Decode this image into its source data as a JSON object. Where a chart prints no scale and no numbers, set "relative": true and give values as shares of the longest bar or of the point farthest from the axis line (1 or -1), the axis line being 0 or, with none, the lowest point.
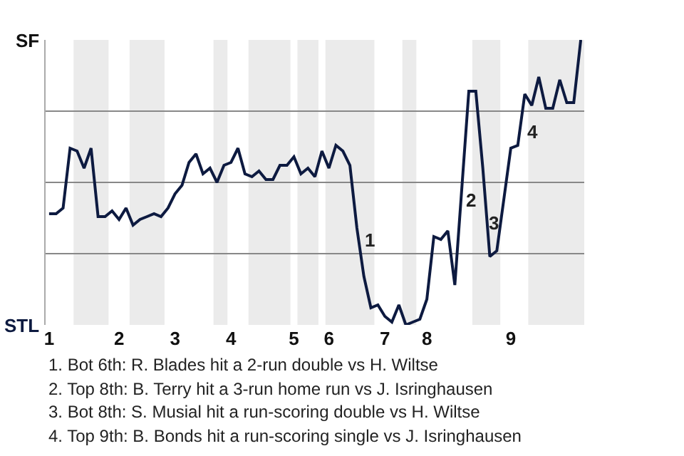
{
  "chart_data": {
    "type": "line",
    "relative": true,
    "categories": [
      "1",
      null,
      null,
      null,
      null,
      null,
      null,
      null,
      null,
      null,
      "2",
      null,
      null,
      null,
      null,
      null,
      null,
      null,
      "3",
      null,
      null,
      null,
      null,
      null,
      null,
      null,
      "4",
      null,
      null,
      null,
      null,
      null,
      null,
      null,
      null,
      "5",
      null,
      null,
      null,
      null,
      "6",
      null,
      null,
      null,
      null,
      null,
      null,
      null,
      "7",
      null,
      null,
      null,
      null,
      null,
      "8",
      null,
      null,
      null,
      null,
      null,
      null,
      null,
      null,
      null,
      null,
      null,
      "9",
      null,
      null,
      null,
      null,
      null,
      null,
      null,
      null,
      null,
      null
    ],
    "series": [
      {
        "color": "#0d1a40",
        "values": [
          0.39,
          0.39,
          0.41,
          0.62,
          0.61,
          0.55,
          0.62,
          0.38,
          0.38,
          0.4,
          0.37,
          0.41,
          0.35,
          0.37,
          0.38,
          0.39,
          0.38,
          0.41,
          0.46,
          0.49,
          0.57,
          0.6,
          0.53,
          0.55,
          0.5,
          0.56,
          0.57,
          0.62,
          0.53,
          0.52,
          0.54,
          0.51,
          0.51,
          0.56,
          0.56,
          0.59,
          0.53,
          0.55,
          0.52,
          0.61,
          0.55,
          0.63,
          0.61,
          0.56,
          0.34,
          0.17,
          0.06,
          0.07,
          0.03,
          0.01,
          0.07,
          0,
          0.01,
          0.02,
          0.09,
          0.31,
          0.3,
          0.33,
          0.14,
          0.48,
          0.82,
          0.82,
          0.55,
          0.24,
          0.26,
          0.44,
          0.62,
          0.63,
          0.81,
          0.77,
          0.87,
          0.76,
          0.76,
          0.86,
          0.78,
          0.78,
          1
        ]
      }
    ],
    "grid": "y",
    "marker": "none",
    "line_style": "solid",
    "annotations": [
      "SF",
      "STL",
      "1",
      "2",
      "3",
      "4",
      "1. Bot 6th: R. Blades hit a 2-run double vs H. Wiltse",
      "2. Top 8th: B. Terry hit a 3-run home run vs J. Isringhausen",
      "3. Bot 8th: S. Musial hit a run-scoring double vs H. Wiltse",
      "4. Top 9th: B. Bonds hit a run-scoring single vs J. Isringhausen"
    ]
  }
}
